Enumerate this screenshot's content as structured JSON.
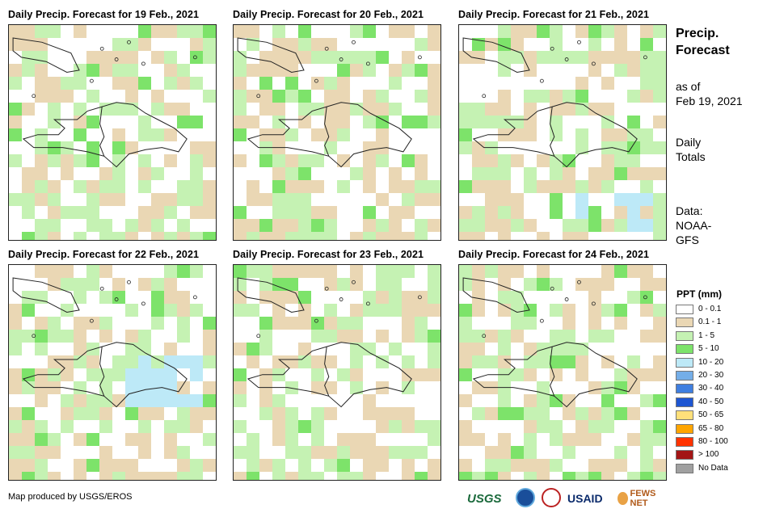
{
  "panels": [
    {
      "title": "Daily Precip. Forecast for 19 Feb., 2021",
      "seed": 19
    },
    {
      "title": "Daily Precip. Forecast for 20 Feb., 2021",
      "seed": 20
    },
    {
      "title": "Daily Precip. Forecast for 21 Feb., 2021",
      "seed": 21
    },
    {
      "title": "Daily Precip. Forecast for 22 Feb., 2021",
      "seed": 22
    },
    {
      "title": "Daily Precip. Forecast for 23 Feb., 2021",
      "seed": 23
    },
    {
      "title": "Daily Precip. Forecast for 24 Feb., 2021",
      "seed": 24
    }
  ],
  "side": {
    "title_line1": "Precip.",
    "title_line2": "Forecast",
    "asof_line1": "as of",
    "asof_line2": "Feb 19, 2021",
    "totals_line1": "Daily",
    "totals_line2": "Totals",
    "data_line1": "Data:",
    "data_line2": "NOAA-",
    "data_line3": "GFS"
  },
  "legend": {
    "title": "PPT (mm)",
    "items": [
      {
        "label": "0 - 0.1",
        "color": "#ffffff"
      },
      {
        "label": "0.1 - 1",
        "color": "#ead7b4"
      },
      {
        "label": "1 - 5",
        "color": "#c5f2b3"
      },
      {
        "label": "5 - 10",
        "color": "#7de36a"
      },
      {
        "label": "10 - 20",
        "color": "#bde9f7"
      },
      {
        "label": "20 - 30",
        "color": "#74aee8"
      },
      {
        "label": "30 - 40",
        "color": "#3f7fe0"
      },
      {
        "label": "40 - 50",
        "color": "#1e56d2"
      },
      {
        "label": "50 - 65",
        "color": "#ffe07a"
      },
      {
        "label": "65 - 80",
        "color": "#ffa500"
      },
      {
        "label": "80 - 100",
        "color": "#ff3300"
      },
      {
        "label": "> 100",
        "color": "#a31515"
      },
      {
        "label": "No Data",
        "color": "#a0a0a0"
      }
    ]
  },
  "footer": {
    "credit": "Map produced by USGS/EROS",
    "logos": {
      "usgs": "USGS",
      "noaa": "noaa-icon",
      "nws": "nws-icon",
      "usaid": "USAID",
      "fews": "FEWS NET"
    }
  }
}
